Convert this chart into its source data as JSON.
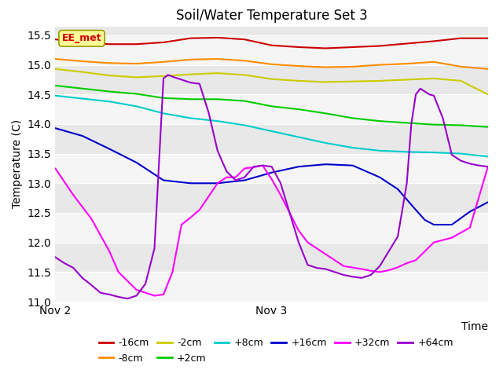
{
  "title": "Soil/Water Temperature Set 3",
  "xlabel": "Time",
  "ylabel": "Temperature (C)",
  "ylim": [
    11.0,
    15.65
  ],
  "xlim": [
    0,
    48
  ],
  "xtick_positions": [
    0,
    24,
    48
  ],
  "xtick_labels": [
    "Nov 2",
    "Nov 3",
    ""
  ],
  "ytick_positions": [
    11.0,
    11.5,
    12.0,
    12.5,
    13.0,
    13.5,
    14.0,
    14.5,
    15.0,
    15.5
  ],
  "figure_bg": "#ffffff",
  "plot_bg": "#e8e8e8",
  "annotation_text": "EE_met",
  "annotation_color": "#cc0000",
  "annotation_bg": "#ffff99",
  "annotation_edge": "#999900",
  "series": {
    "-16cm": {
      "color": "#cc0000",
      "points": [
        [
          0,
          15.43
        ],
        [
          3,
          15.38
        ],
        [
          6,
          15.35
        ],
        [
          9,
          15.35
        ],
        [
          12,
          15.38
        ],
        [
          15,
          15.45
        ],
        [
          18,
          15.46
        ],
        [
          21,
          15.43
        ],
        [
          24,
          15.33
        ],
        [
          27,
          15.3
        ],
        [
          30,
          15.28
        ],
        [
          33,
          15.3
        ],
        [
          36,
          15.32
        ],
        [
          39,
          15.36
        ],
        [
          42,
          15.4
        ],
        [
          45,
          15.45
        ],
        [
          48,
          15.45
        ]
      ]
    },
    "-8cm": {
      "color": "#ff8c00",
      "points": [
        [
          0,
          15.1
        ],
        [
          3,
          15.06
        ],
        [
          6,
          15.03
        ],
        [
          9,
          15.02
        ],
        [
          12,
          15.05
        ],
        [
          15,
          15.09
        ],
        [
          18,
          15.1
        ],
        [
          21,
          15.07
        ],
        [
          24,
          15.01
        ],
        [
          27,
          14.98
        ],
        [
          30,
          14.96
        ],
        [
          33,
          14.97
        ],
        [
          36,
          15.0
        ],
        [
          39,
          15.02
        ],
        [
          42,
          15.05
        ],
        [
          45,
          14.97
        ],
        [
          48,
          14.93
        ]
      ]
    },
    "-2cm": {
      "color": "#cccc00",
      "points": [
        [
          0,
          14.93
        ],
        [
          3,
          14.88
        ],
        [
          6,
          14.82
        ],
        [
          9,
          14.79
        ],
        [
          12,
          14.81
        ],
        [
          15,
          14.84
        ],
        [
          18,
          14.86
        ],
        [
          21,
          14.83
        ],
        [
          24,
          14.76
        ],
        [
          27,
          14.73
        ],
        [
          30,
          14.71
        ],
        [
          33,
          14.72
        ],
        [
          36,
          14.73
        ],
        [
          39,
          14.75
        ],
        [
          42,
          14.77
        ],
        [
          45,
          14.73
        ],
        [
          48,
          14.5
        ]
      ]
    },
    "+2cm": {
      "color": "#00cc00",
      "points": [
        [
          0,
          14.65
        ],
        [
          3,
          14.6
        ],
        [
          6,
          14.55
        ],
        [
          9,
          14.51
        ],
        [
          12,
          14.44
        ],
        [
          15,
          14.42
        ],
        [
          18,
          14.42
        ],
        [
          21,
          14.39
        ],
        [
          24,
          14.3
        ],
        [
          27,
          14.25
        ],
        [
          30,
          14.18
        ],
        [
          33,
          14.1
        ],
        [
          36,
          14.05
        ],
        [
          39,
          14.02
        ],
        [
          42,
          13.99
        ],
        [
          45,
          13.98
        ],
        [
          48,
          13.95
        ]
      ]
    },
    "+8cm": {
      "color": "#00cccc",
      "points": [
        [
          0,
          14.48
        ],
        [
          3,
          14.43
        ],
        [
          6,
          14.38
        ],
        [
          9,
          14.3
        ],
        [
          12,
          14.18
        ],
        [
          15,
          14.1
        ],
        [
          18,
          14.05
        ],
        [
          21,
          13.98
        ],
        [
          24,
          13.88
        ],
        [
          27,
          13.78
        ],
        [
          30,
          13.68
        ],
        [
          33,
          13.6
        ],
        [
          36,
          13.55
        ],
        [
          39,
          13.53
        ],
        [
          42,
          13.52
        ],
        [
          45,
          13.5
        ],
        [
          48,
          13.45
        ]
      ]
    },
    "+16cm": {
      "color": "#0000cc",
      "points": [
        [
          0,
          13.93
        ],
        [
          3,
          13.8
        ],
        [
          6,
          13.58
        ],
        [
          9,
          13.35
        ],
        [
          12,
          13.05
        ],
        [
          15,
          13.0
        ],
        [
          18,
          13.0
        ],
        [
          21,
          13.05
        ],
        [
          24,
          13.18
        ],
        [
          27,
          13.28
        ],
        [
          30,
          13.32
        ],
        [
          33,
          13.3
        ],
        [
          36,
          13.1
        ],
        [
          38,
          12.9
        ],
        [
          40,
          12.55
        ],
        [
          41,
          12.38
        ],
        [
          42,
          12.3
        ],
        [
          43,
          12.3
        ],
        [
          44,
          12.3
        ],
        [
          46,
          12.52
        ],
        [
          48,
          12.68
        ]
      ]
    },
    "+32cm": {
      "color": "#ff00ff",
      "points": [
        [
          0,
          13.25
        ],
        [
          2,
          12.8
        ],
        [
          4,
          12.4
        ],
        [
          6,
          11.85
        ],
        [
          7,
          11.5
        ],
        [
          8,
          11.35
        ],
        [
          9,
          11.2
        ],
        [
          10,
          11.15
        ],
        [
          11,
          11.1
        ],
        [
          12,
          11.12
        ],
        [
          13,
          11.5
        ],
        [
          14,
          12.3
        ],
        [
          15,
          12.42
        ],
        [
          16,
          12.55
        ],
        [
          18,
          13.0
        ],
        [
          19,
          13.1
        ],
        [
          20,
          13.1
        ],
        [
          21,
          13.25
        ],
        [
          22,
          13.27
        ],
        [
          23,
          13.3
        ],
        [
          24,
          13.07
        ],
        [
          25,
          12.8
        ],
        [
          26,
          12.5
        ],
        [
          27,
          12.2
        ],
        [
          28,
          12.0
        ],
        [
          30,
          11.8
        ],
        [
          32,
          11.6
        ],
        [
          34,
          11.55
        ],
        [
          35,
          11.52
        ],
        [
          36,
          11.5
        ],
        [
          37,
          11.53
        ],
        [
          38,
          11.58
        ],
        [
          39,
          11.65
        ],
        [
          40,
          11.7
        ],
        [
          42,
          12.0
        ],
        [
          44,
          12.08
        ],
        [
          46,
          12.25
        ],
        [
          48,
          13.28
        ]
      ]
    },
    "+64cm": {
      "color": "#9900cc",
      "points": [
        [
          0,
          11.75
        ],
        [
          1,
          11.65
        ],
        [
          2,
          11.57
        ],
        [
          3,
          11.4
        ],
        [
          4,
          11.28
        ],
        [
          5,
          11.15
        ],
        [
          6,
          11.12
        ],
        [
          7,
          11.08
        ],
        [
          8,
          11.05
        ],
        [
          9,
          11.1
        ],
        [
          10,
          11.3
        ],
        [
          11,
          11.9
        ],
        [
          12,
          14.77
        ],
        [
          12.5,
          14.83
        ],
        [
          13,
          14.8
        ],
        [
          14,
          14.75
        ],
        [
          15,
          14.7
        ],
        [
          16,
          14.68
        ],
        [
          17,
          14.2
        ],
        [
          18,
          13.55
        ],
        [
          19,
          13.2
        ],
        [
          20,
          13.05
        ],
        [
          21,
          13.1
        ],
        [
          22,
          13.28
        ],
        [
          23,
          13.3
        ],
        [
          24,
          13.28
        ],
        [
          25,
          13.0
        ],
        [
          26,
          12.5
        ],
        [
          27,
          12.0
        ],
        [
          28,
          11.62
        ],
        [
          29,
          11.57
        ],
        [
          30,
          11.55
        ],
        [
          31,
          11.5
        ],
        [
          32,
          11.45
        ],
        [
          33,
          11.42
        ],
        [
          34,
          11.4
        ],
        [
          35,
          11.45
        ],
        [
          36,
          11.6
        ],
        [
          37,
          11.85
        ],
        [
          38,
          12.1
        ],
        [
          39,
          13.0
        ],
        [
          39.5,
          14.0
        ],
        [
          40,
          14.5
        ],
        [
          40.5,
          14.6
        ],
        [
          41,
          14.55
        ],
        [
          41.5,
          14.5
        ],
        [
          42,
          14.48
        ],
        [
          43,
          14.1
        ],
        [
          44,
          13.48
        ],
        [
          45,
          13.38
        ],
        [
          46,
          13.33
        ],
        [
          47,
          13.3
        ],
        [
          48,
          13.28
        ]
      ]
    }
  },
  "legend_row1": [
    "-16cm",
    "-8cm",
    "-2cm",
    "+2cm",
    "+8cm",
    "+16cm"
  ],
  "legend_row2": [
    "+32cm",
    "+64cm"
  ]
}
